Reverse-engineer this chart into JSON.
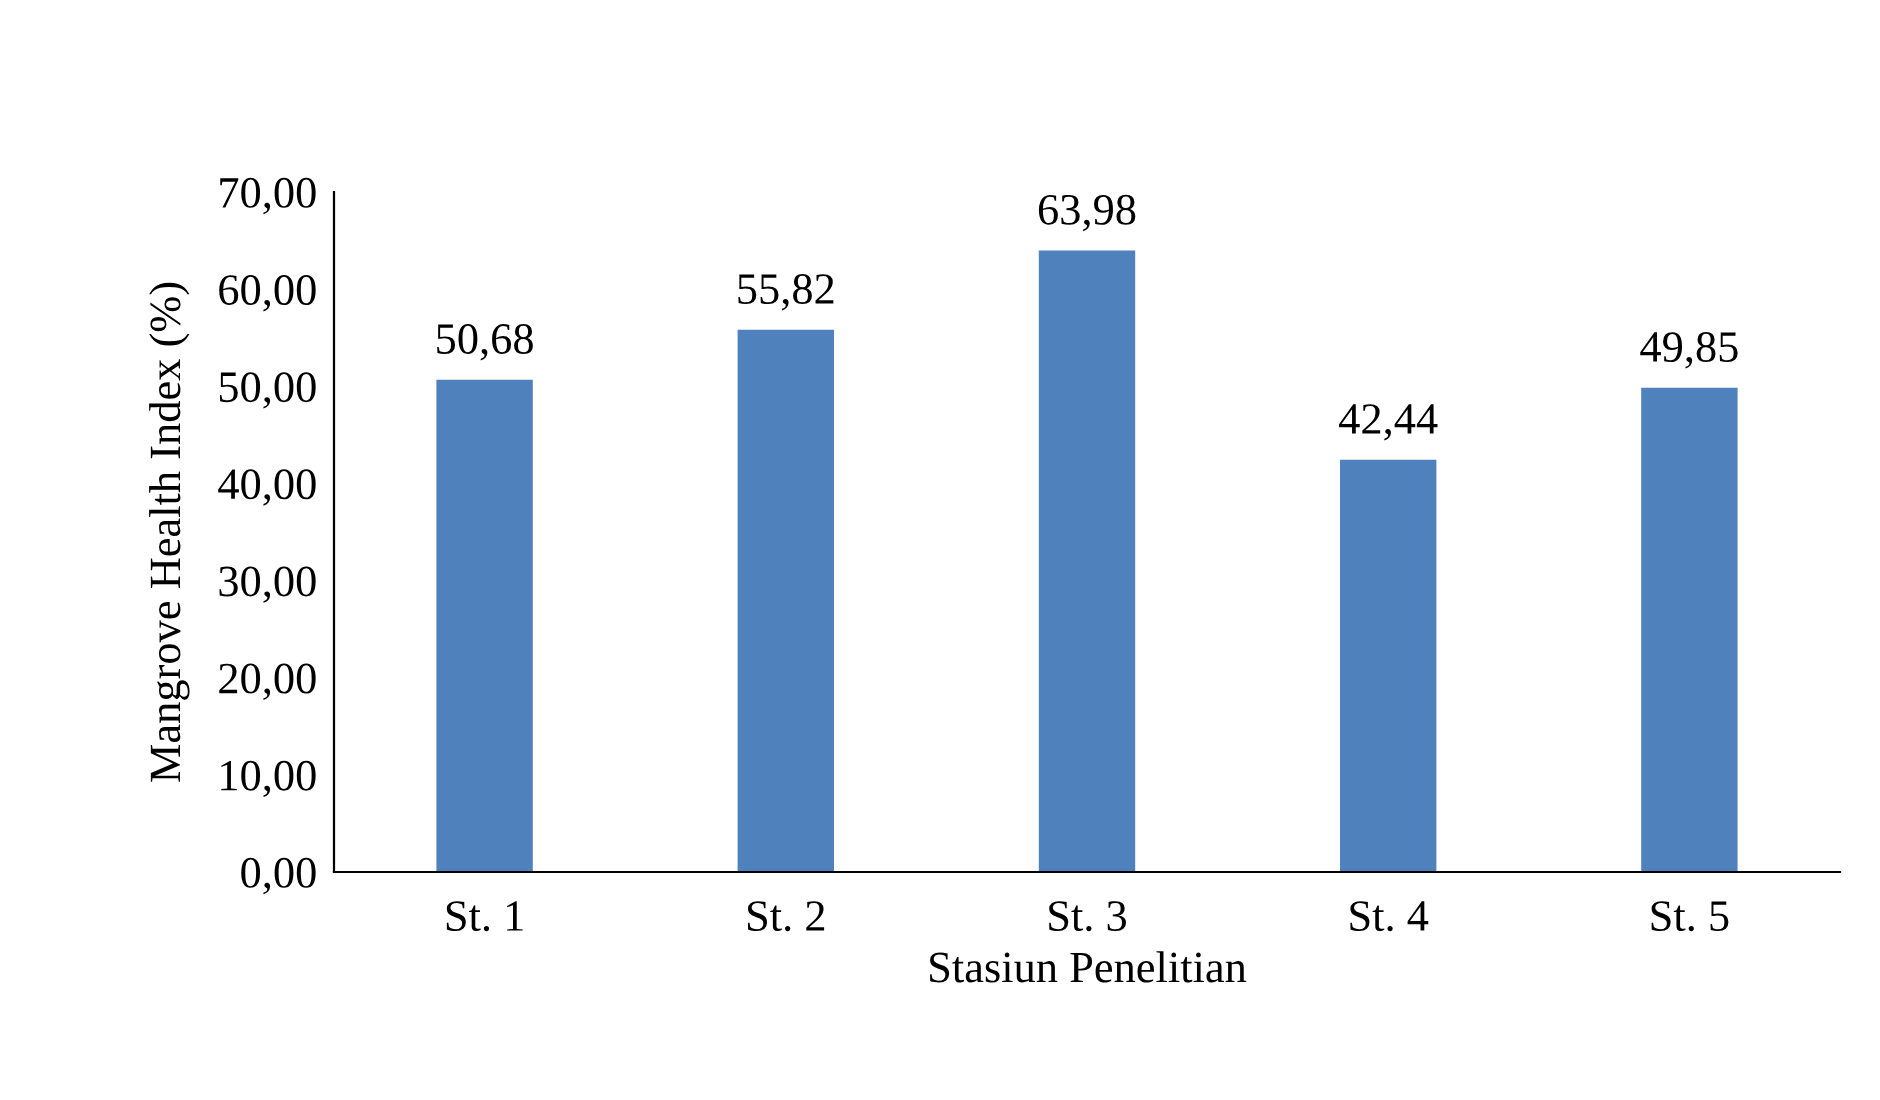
{
  "chart_data": {
    "type": "bar",
    "xlabel": "Stasiun Penelitian",
    "ylabel": "Mangrove Health Index (%)",
    "categories": [
      "St. 1",
      "St. 2",
      "St. 3",
      "St. 4",
      "St. 5"
    ],
    "values": [
      50.68,
      55.82,
      63.98,
      42.44,
      49.85
    ],
    "value_labels": [
      "50,68",
      "55,82",
      "63,98",
      "42,44",
      "49,85"
    ],
    "color": "#4f81bd",
    "ylim": [
      0,
      70
    ],
    "yticks": [
      {
        "value": 0,
        "label": "0,00"
      },
      {
        "value": 10,
        "label": "10,00"
      },
      {
        "value": 20,
        "label": "20,00"
      },
      {
        "value": 30,
        "label": "30,00"
      },
      {
        "value": 40,
        "label": "40,00"
      },
      {
        "value": 50,
        "label": "50,00"
      },
      {
        "value": 60,
        "label": "60,00"
      },
      {
        "value": 70,
        "label": "70,00"
      }
    ],
    "grid": false,
    "legend": false
  }
}
